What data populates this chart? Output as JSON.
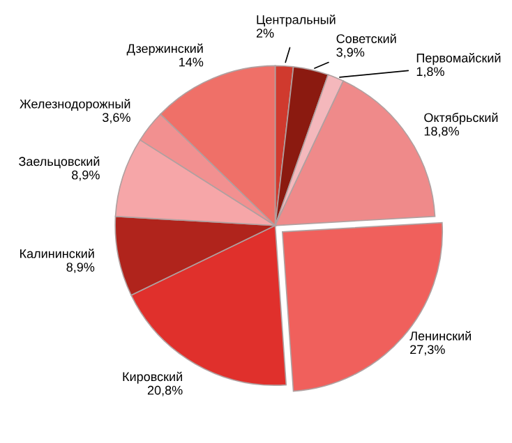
{
  "chart_data": {
    "type": "pie",
    "categories": [
      "Центральный",
      "Советский",
      "Первомайский",
      "Октябрьский",
      "Ленинский",
      "Кировский",
      "Калининский",
      "Заельцовский",
      "Железнодорожный",
      "Дзержинский"
    ],
    "values": [
      2,
      3.9,
      1.8,
      18.8,
      27.3,
      20.8,
      8.9,
      8.9,
      3.6,
      14
    ],
    "value_labels": [
      "2%",
      "3,9%",
      "1,8%",
      "18,8%",
      "27,3%",
      "20,8%",
      "8,9%",
      "8,9%",
      "3,6%",
      "14%"
    ],
    "colors": [
      "#d03a2e",
      "#8b1a10",
      "#f4b8bc",
      "#ef8a8a",
      "#f0605c",
      "#e0302c",
      "#b0241c",
      "#f6a6a8",
      "#f29090",
      "#ef7068"
    ],
    "legend": false
  }
}
